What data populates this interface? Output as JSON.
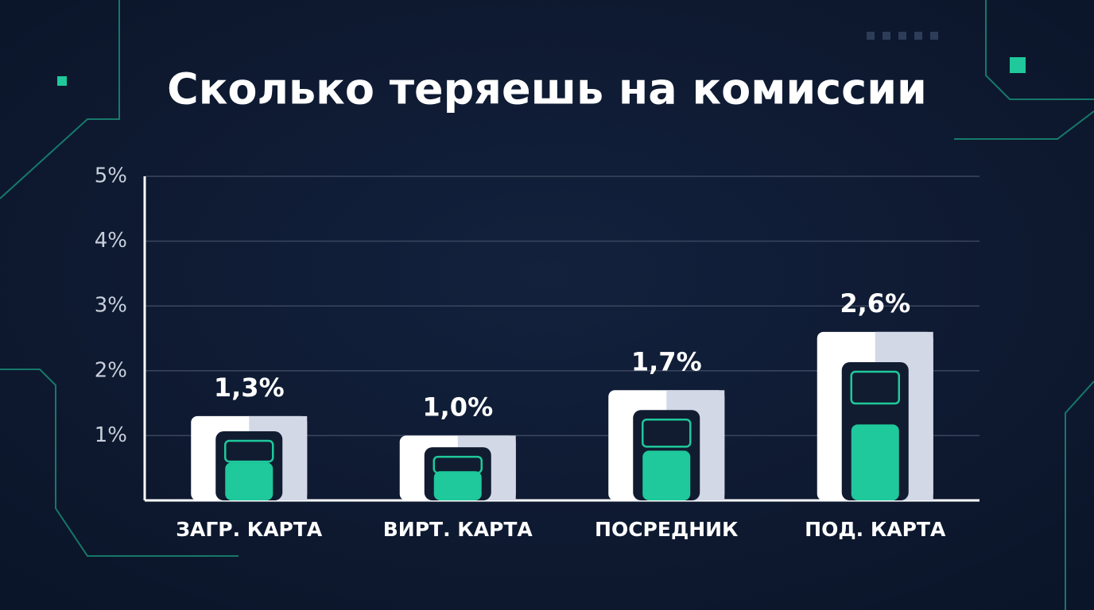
{
  "chart_data": {
    "type": "bar",
    "title": "Сколько теряешь на комиссии",
    "categories": [
      "ЗАГР. КАРТА",
      "ВИРТ. КАРТА",
      "ПОСРЕДНИК",
      "ПОД. КАРТА"
    ],
    "values": [
      1.3,
      1.0,
      1.7,
      2.6
    ],
    "value_labels": [
      "1,3%",
      "1,0%",
      "1,7%",
      "2,6%"
    ],
    "color": "#1fc99b",
    "ylim": [
      0,
      5
    ],
    "yticks": [
      {
        "value": 1,
        "label": "1%"
      },
      {
        "value": 2,
        "label": "2%"
      },
      {
        "value": 3,
        "label": "3%"
      },
      {
        "value": 4,
        "label": "4%"
      },
      {
        "value": 5,
        "label": "5%"
      }
    ],
    "grid": true
  }
}
